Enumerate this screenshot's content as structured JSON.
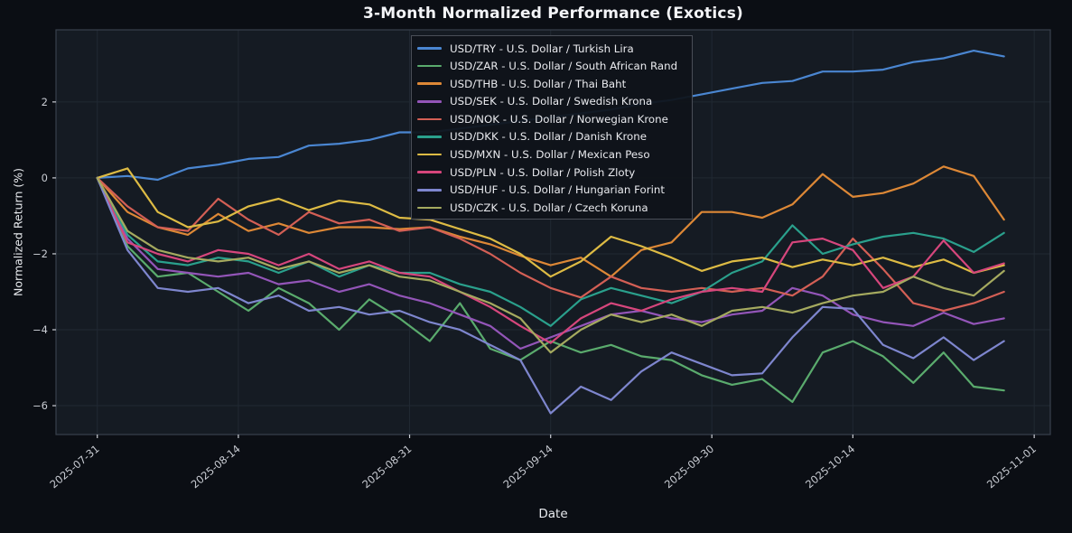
{
  "theme": {
    "page_bg": "#0b0e14",
    "plot_bg": "#151b23",
    "grid_color": "#212933",
    "spine_color": "#39404c",
    "tick_color": "#c9ccd3",
    "text_color": "#e8eaee",
    "title_color": "#f3f4f7"
  },
  "chart_data": {
    "type": "line",
    "title": "3-Month Normalized Performance (Exotics)",
    "xlabel": "Date",
    "ylabel": "Normalized Return (%)",
    "grid": true,
    "legend_position": "upper-center-inside",
    "ylim": [
      -6.76,
      3.9
    ],
    "x_start_date": "2025-07-31",
    "xlim_days": [
      -4.1,
      94.6
    ],
    "x_ticks": [
      "2025-07-31",
      "2025-08-14",
      "2025-08-31",
      "2025-09-14",
      "2025-09-30",
      "2025-10-14",
      "2025-11-01"
    ],
    "y_ticks": [
      {
        "value": 2,
        "label": "2"
      },
      {
        "value": 0,
        "label": "0"
      },
      {
        "value": -2,
        "label": "−2"
      },
      {
        "value": -4,
        "label": "−4"
      },
      {
        "value": -6,
        "label": "−6"
      }
    ],
    "x": [
      "2025-07-31",
      "2025-08-03",
      "2025-08-06",
      "2025-08-09",
      "2025-08-12",
      "2025-08-15",
      "2025-08-18",
      "2025-08-21",
      "2025-08-24",
      "2025-08-27",
      "2025-08-30",
      "2025-09-02",
      "2025-09-05",
      "2025-09-08",
      "2025-09-11",
      "2025-09-14",
      "2025-09-17",
      "2025-09-20",
      "2025-09-23",
      "2025-09-26",
      "2025-09-29",
      "2025-10-02",
      "2025-10-05",
      "2025-10-08",
      "2025-10-11",
      "2025-10-14",
      "2025-10-17",
      "2025-10-20",
      "2025-10-23",
      "2025-10-26",
      "2025-10-29"
    ],
    "series": [
      {
        "symbol": "USD/TRY",
        "label": "USD/TRY - U.S. Dollar / Turkish Lira",
        "color": "#4a86d1",
        "values": [
          0,
          0.05,
          -0.05,
          0.25,
          0.35,
          0.5,
          0.55,
          0.85,
          0.9,
          1.0,
          1.2,
          1.2,
          1.3,
          1.4,
          1.5,
          1.6,
          1.7,
          1.8,
          1.95,
          2.05,
          2.2,
          2.35,
          2.5,
          2.55,
          2.8,
          2.8,
          2.85,
          3.05,
          3.15,
          3.35,
          3.2
        ]
      },
      {
        "symbol": "USD/ZAR",
        "label": "USD/ZAR - U.S. Dollar / South African Rand",
        "color": "#5aab6d",
        "values": [
          0,
          -1.8,
          -2.6,
          -2.5,
          -3.0,
          -3.5,
          -2.9,
          -3.3,
          -4.0,
          -3.2,
          -3.7,
          -4.3,
          -3.3,
          -4.5,
          -4.8,
          -4.3,
          -4.6,
          -4.4,
          -4.7,
          -4.8,
          -5.2,
          -5.45,
          -5.3,
          -5.9,
          -4.6,
          -4.3,
          -4.7,
          -5.4,
          -4.6,
          -5.5,
          -5.6
        ]
      },
      {
        "symbol": "USD/THB",
        "label": "USD/THB - U.S. Dollar / Thai Baht",
        "color": "#dd8836",
        "values": [
          0,
          -0.9,
          -1.3,
          -1.5,
          -0.95,
          -1.4,
          -1.2,
          -1.45,
          -1.3,
          -1.3,
          -1.35,
          -1.3,
          -1.55,
          -1.75,
          -2.05,
          -2.3,
          -2.1,
          -2.6,
          -1.9,
          -1.7,
          -0.9,
          -0.9,
          -1.05,
          -0.7,
          0.1,
          -0.5,
          -0.4,
          -0.15,
          0.3,
          0.05,
          -1.1
        ]
      },
      {
        "symbol": "USD/SEK",
        "label": "USD/SEK - U.S. Dollar / Swedish Krona",
        "color": "#9355b8",
        "values": [
          0,
          -1.6,
          -2.4,
          -2.5,
          -2.6,
          -2.5,
          -2.8,
          -2.7,
          -3.0,
          -2.8,
          -3.1,
          -3.3,
          -3.6,
          -3.9,
          -4.5,
          -4.2,
          -3.9,
          -3.6,
          -3.5,
          -3.7,
          -3.8,
          -3.6,
          -3.5,
          -2.9,
          -3.1,
          -3.6,
          -3.8,
          -3.9,
          -3.55,
          -3.85,
          -3.7
        ]
      },
      {
        "symbol": "USD/NOK",
        "label": "USD/NOK - U.S. Dollar / Norwegian Krone",
        "color": "#d35f55",
        "values": [
          0,
          -0.75,
          -1.3,
          -1.4,
          -0.55,
          -1.1,
          -1.5,
          -0.9,
          -1.2,
          -1.1,
          -1.4,
          -1.3,
          -1.6,
          -2.0,
          -2.5,
          -2.9,
          -3.15,
          -2.6,
          -2.9,
          -3.0,
          -2.9,
          -3.0,
          -2.9,
          -3.1,
          -2.6,
          -1.6,
          -2.4,
          -3.3,
          -3.5,
          -3.3,
          -3.0
        ]
      },
      {
        "symbol": "USD/DKK",
        "label": "USD/DKK - U.S. Dollar / Danish Krone",
        "color": "#2aa08c",
        "values": [
          0,
          -1.5,
          -2.2,
          -2.3,
          -2.1,
          -2.2,
          -2.5,
          -2.2,
          -2.6,
          -2.3,
          -2.5,
          -2.5,
          -2.8,
          -3.0,
          -3.4,
          -3.9,
          -3.2,
          -2.9,
          -3.1,
          -3.3,
          -3.0,
          -2.5,
          -2.2,
          -1.25,
          -2.0,
          -1.75,
          -1.55,
          -1.45,
          -1.6,
          -1.95,
          -1.45
        ]
      },
      {
        "symbol": "USD/MXN",
        "label": "USD/MXN - U.S. Dollar / Mexican Peso",
        "color": "#ddbb44",
        "values": [
          0,
          0.25,
          -0.9,
          -1.3,
          -1.15,
          -0.75,
          -0.55,
          -0.85,
          -0.6,
          -0.7,
          -1.05,
          -1.1,
          -1.35,
          -1.6,
          -2.0,
          -2.6,
          -2.2,
          -1.55,
          -1.8,
          -2.1,
          -2.45,
          -2.2,
          -2.1,
          -2.35,
          -2.15,
          -2.3,
          -2.1,
          -2.35,
          -2.15,
          -2.5,
          -2.3
        ]
      },
      {
        "symbol": "USD/PLN",
        "label": "USD/PLN - U.S. Dollar / Polish Zloty",
        "color": "#d6467c",
        "values": [
          0,
          -1.7,
          -2.0,
          -2.2,
          -1.9,
          -2.0,
          -2.3,
          -2.0,
          -2.4,
          -2.2,
          -2.5,
          -2.6,
          -3.0,
          -3.4,
          -3.9,
          -4.35,
          -3.7,
          -3.3,
          -3.5,
          -3.2,
          -3.0,
          -2.9,
          -3.0,
          -1.7,
          -1.6,
          -1.9,
          -2.9,
          -2.6,
          -1.65,
          -2.5,
          -2.25
        ]
      },
      {
        "symbol": "USD/HUF",
        "label": "USD/HUF - U.S. Dollar / Hungarian Forint",
        "color": "#7e86ce",
        "values": [
          0,
          -1.9,
          -2.9,
          -3.0,
          -2.9,
          -3.3,
          -3.1,
          -3.5,
          -3.4,
          -3.6,
          -3.5,
          -3.8,
          -4.0,
          -4.4,
          -4.8,
          -6.2,
          -5.5,
          -5.85,
          -5.1,
          -4.6,
          -4.9,
          -5.2,
          -5.15,
          -4.2,
          -3.4,
          -3.45,
          -4.4,
          -4.75,
          -4.2,
          -4.8,
          -4.3
        ]
      },
      {
        "symbol": "USD/CZK",
        "label": "USD/CZK - U.S. Dollar / Czech Koruna",
        "color": "#a5aa5f",
        "values": [
          0,
          -1.4,
          -1.9,
          -2.1,
          -2.2,
          -2.1,
          -2.4,
          -2.2,
          -2.5,
          -2.3,
          -2.6,
          -2.7,
          -3.0,
          -3.3,
          -3.7,
          -4.6,
          -4.0,
          -3.6,
          -3.8,
          -3.6,
          -3.9,
          -3.5,
          -3.4,
          -3.55,
          -3.3,
          -3.1,
          -3.0,
          -2.6,
          -2.9,
          -3.1,
          -2.45
        ]
      }
    ]
  }
}
